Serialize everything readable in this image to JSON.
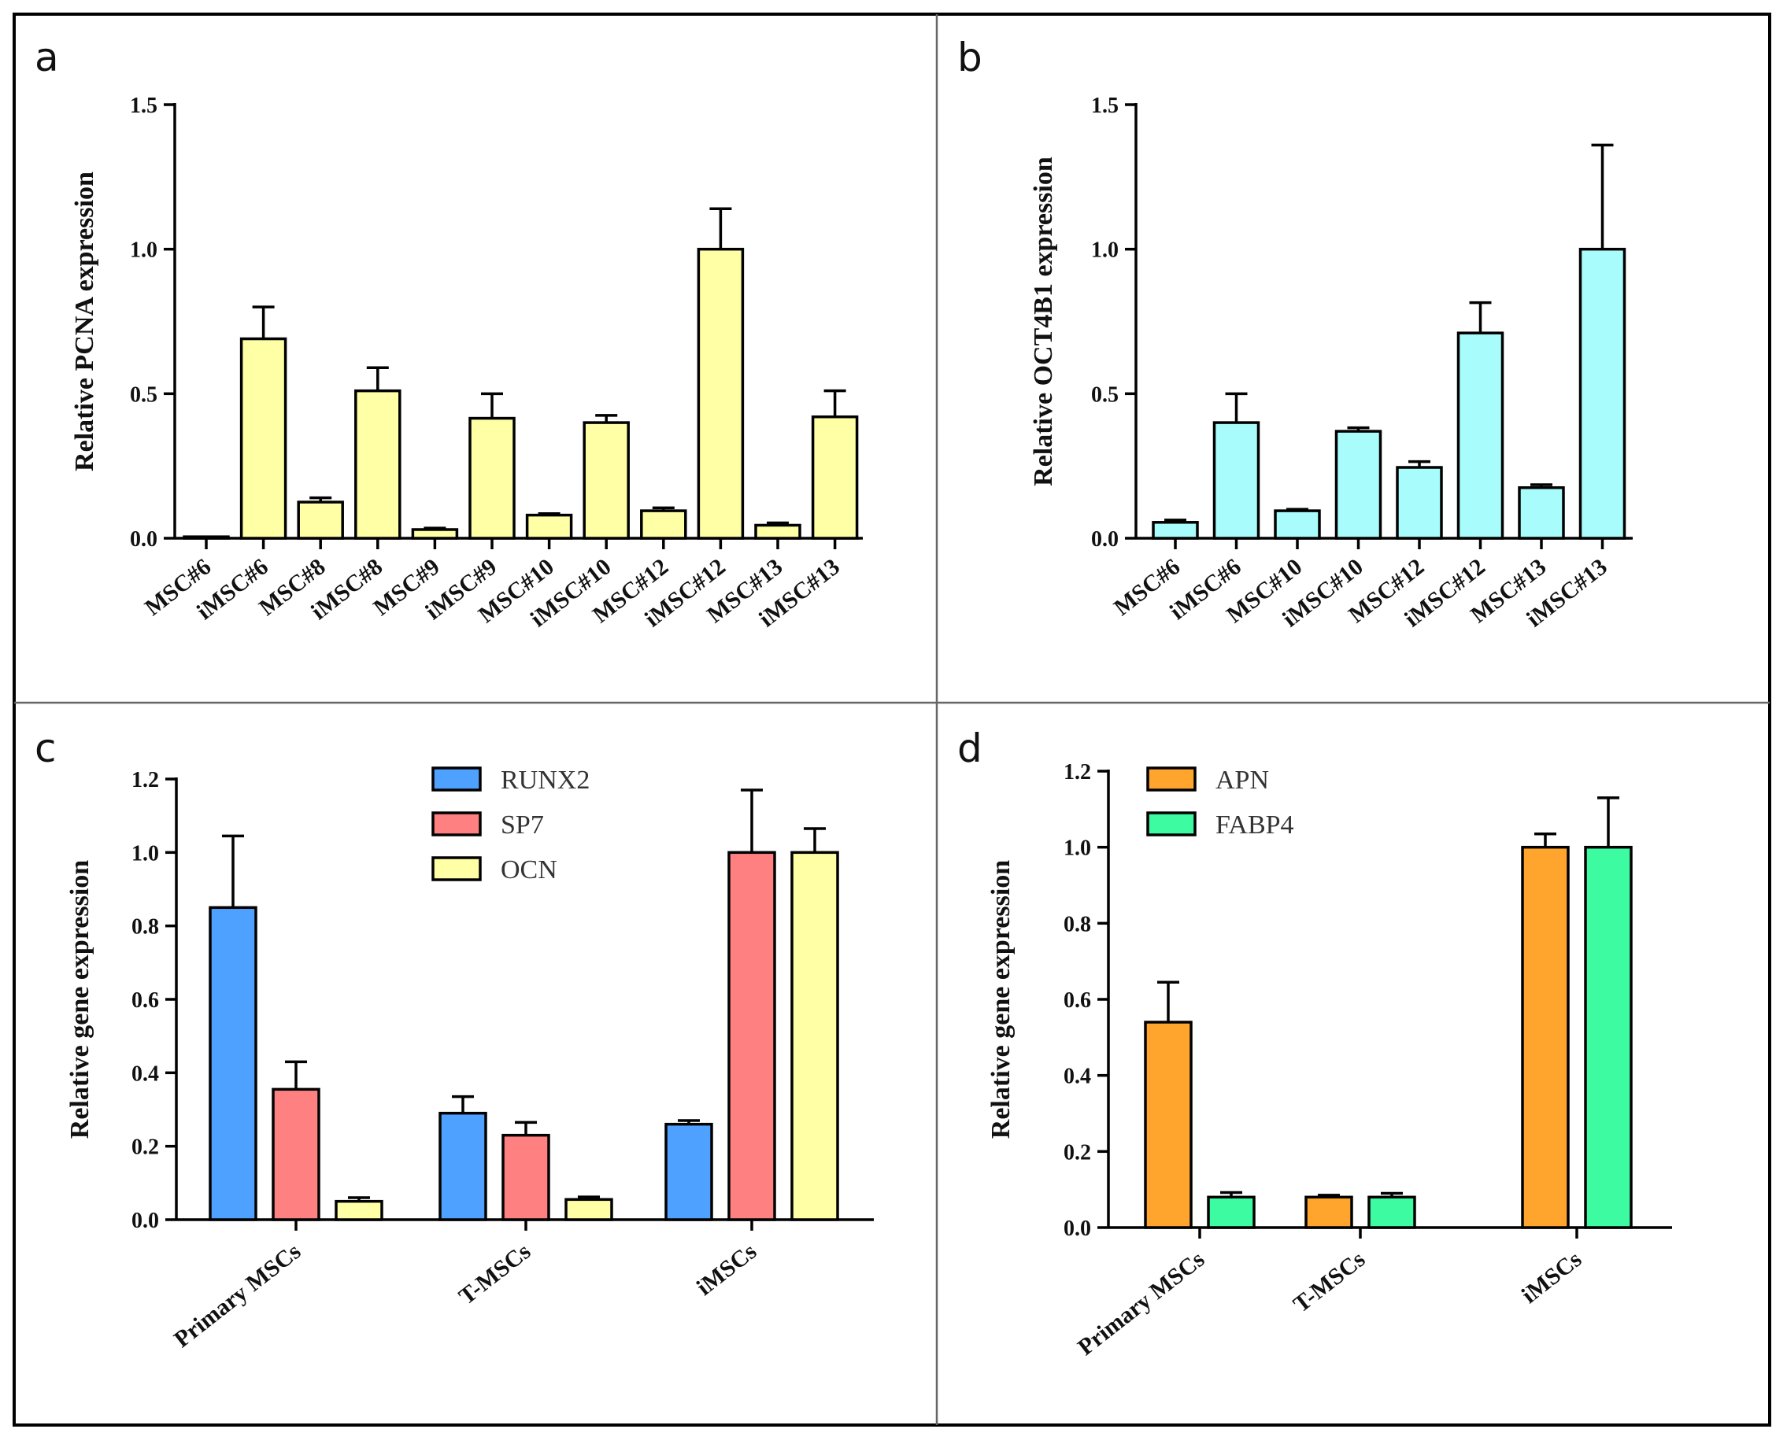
{
  "chart_data": [
    {
      "type": "bar",
      "panel": "a",
      "title": "",
      "xlabel": "",
      "ylabel": "Relative PCNA expression",
      "ylim": [
        0,
        1.5
      ],
      "yticks": [
        0.0,
        0.5,
        1.0,
        1.5
      ],
      "ytick_labels": [
        "0.0",
        "0.5",
        "1.0",
        "1.5"
      ],
      "categories": [
        "MSC#6",
        "iMSC#6",
        "MSC#8",
        "iMSC#8",
        "MSC#9",
        "iMSC#9",
        "MSC#10",
        "iMSC#10",
        "MSC#12",
        "iMSC#12",
        "MSC#13",
        "iMSC#13"
      ],
      "series": [
        {
          "name": "PCNA",
          "color": "#ffffa6",
          "values": [
            0.005,
            0.69,
            0.125,
            0.51,
            0.03,
            0.415,
            0.08,
            0.4,
            0.095,
            1.0,
            0.045,
            0.42
          ],
          "errors": [
            0.0,
            0.11,
            0.015,
            0.08,
            0.005,
            0.085,
            0.005,
            0.025,
            0.01,
            0.14,
            0.008,
            0.09
          ]
        }
      ]
    },
    {
      "type": "bar",
      "panel": "b",
      "title": "",
      "xlabel": "",
      "ylabel": "Relative OCT4B1 expression",
      "ylim": [
        0,
        1.5
      ],
      "yticks": [
        0.0,
        0.5,
        1.0,
        1.5
      ],
      "ytick_labels": [
        "0.0",
        "0.5",
        "1.0",
        "1.5"
      ],
      "categories": [
        "MSC#6",
        "iMSC#6",
        "MSC#10",
        "iMSC#10",
        "MSC#12",
        "iMSC#12",
        "MSC#13",
        "iMSC#13"
      ],
      "series": [
        {
          "name": "OCT4B1",
          "color": "#a9fcfc",
          "values": [
            0.055,
            0.4,
            0.095,
            0.37,
            0.245,
            0.71,
            0.175,
            1.0
          ],
          "errors": [
            0.008,
            0.1,
            0.005,
            0.012,
            0.02,
            0.105,
            0.01,
            0.36
          ]
        }
      ]
    },
    {
      "type": "bar",
      "panel": "c",
      "title": "",
      "xlabel": "",
      "ylabel": "Relative gene expression",
      "ylim": [
        0,
        1.2
      ],
      "yticks": [
        0.0,
        0.2,
        0.4,
        0.6,
        0.8,
        1.0,
        1.2
      ],
      "ytick_labels": [
        "0.0",
        "0.2",
        "0.4",
        "0.6",
        "0.8",
        "1.0",
        "1.2"
      ],
      "categories": [
        "Primary MSCs",
        "T-MSCs",
        "iMSCs"
      ],
      "legend_position": "top-center",
      "series": [
        {
          "name": "RUNX2",
          "color": "#4ea1ff",
          "values": [
            0.85,
            0.29,
            0.26
          ],
          "errors": [
            0.195,
            0.045,
            0.01
          ]
        },
        {
          "name": "SP7",
          "color": "#ff8080",
          "values": [
            0.355,
            0.23,
            1.0
          ],
          "errors": [
            0.075,
            0.035,
            0.17
          ]
        },
        {
          "name": "OCN",
          "color": "#ffffa6",
          "values": [
            0.05,
            0.055,
            1.0
          ],
          "errors": [
            0.01,
            0.007,
            0.065
          ]
        }
      ]
    },
    {
      "type": "bar",
      "panel": "d",
      "title": "",
      "xlabel": "",
      "ylabel": "Relative gene expression",
      "ylim": [
        0,
        1.2
      ],
      "yticks": [
        0.0,
        0.2,
        0.4,
        0.6,
        0.8,
        1.0,
        1.2
      ],
      "ytick_labels": [
        "0.0",
        "0.2",
        "0.4",
        "0.6",
        "0.8",
        "1.0",
        "1.2"
      ],
      "categories": [
        "Primary MSCs",
        "T-MSCs",
        "iMSCs"
      ],
      "legend_position": "top-left",
      "series": [
        {
          "name": "APN",
          "color": "#ffa42c",
          "values": [
            0.54,
            0.08,
            1.0
          ],
          "errors": [
            0.105,
            0.005,
            0.035
          ]
        },
        {
          "name": "FABP4",
          "color": "#3dfba0",
          "values": [
            0.08,
            0.08,
            1.0
          ],
          "errors": [
            0.012,
            0.01,
            0.13
          ]
        }
      ]
    }
  ]
}
